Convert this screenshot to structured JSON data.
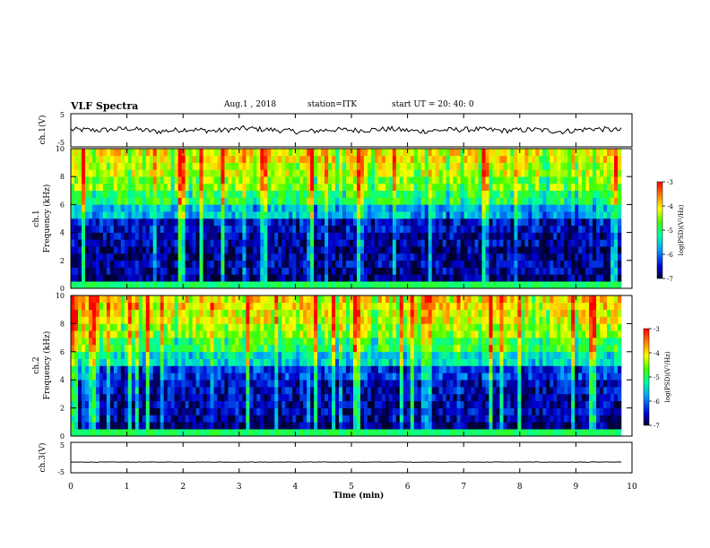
{
  "header": {
    "title": "VLF Spectra",
    "date": "Aug.1 , 2018",
    "station": "station=ITK",
    "start": "start UT = 20: 40: 0"
  },
  "chart_data": [
    {
      "type": "line",
      "ylabel": "ch.1(V)",
      "ylim": [
        -5,
        5
      ],
      "yticks": [
        "-5",
        "5"
      ],
      "series": [
        {
          "values": [
            0.2,
            0.0,
            0.5,
            -0.4,
            0.3,
            -0.2,
            0.6,
            0.1,
            -0.5,
            0.2,
            0.0,
            0.4,
            -0.3,
            0.1,
            0.3,
            -0.1,
            0.2,
            -0.4,
            0.5,
            0.0
          ]
        }
      ]
    },
    {
      "type": "heatmap",
      "ylabel": "ch.1",
      "ylabel2": "Frequency (kHz)",
      "ylim": [
        0,
        10
      ],
      "yticks": [
        "0",
        "2",
        "4",
        "6",
        "8",
        "10"
      ],
      "colorbar_label": "log(PSD)(V²/Hz)",
      "colorbar_ticks": [
        "-3",
        "-4",
        "-5",
        "-6",
        "-7"
      ],
      "clim": [
        -7,
        -3
      ],
      "freq_profile": [
        -6.8,
        -6.6,
        -6.7,
        -6.6,
        -6.4,
        -5.6,
        -4.9,
        -4.5,
        -4.2,
        -4.0
      ]
    },
    {
      "type": "heatmap",
      "ylabel": "ch.2",
      "ylabel2": "Frequency (kHz)",
      "ylim": [
        0,
        10
      ],
      "yticks": [
        "0",
        "2",
        "4",
        "6",
        "8",
        "10"
      ],
      "colorbar_label": "log(PSD)(V²/Hz)",
      "colorbar_ticks": [
        "-3",
        "-4",
        "-5",
        "-6",
        "-7"
      ],
      "clim": [
        -7,
        -3
      ],
      "freq_profile": [
        -6.8,
        -6.6,
        -6.6,
        -6.5,
        -6.2,
        -5.4,
        -4.8,
        -4.4,
        -4.1,
        -3.9
      ]
    },
    {
      "type": "line",
      "ylabel": "ch.3(V)",
      "ylim": [
        -5,
        5
      ],
      "yticks": [
        "-5",
        "5"
      ],
      "xlabel": "Time (min)",
      "xlim": [
        0,
        10
      ],
      "xticks": [
        "0",
        "1",
        "2",
        "3",
        "4",
        "5",
        "6",
        "7",
        "8",
        "9",
        "10"
      ],
      "series": [
        {
          "values": [
            -1.5,
            -1.5,
            -1.5,
            -1.5,
            -1.5,
            -1.5,
            -1.5,
            -1.5,
            -1.5,
            -1.5
          ]
        }
      ]
    }
  ]
}
